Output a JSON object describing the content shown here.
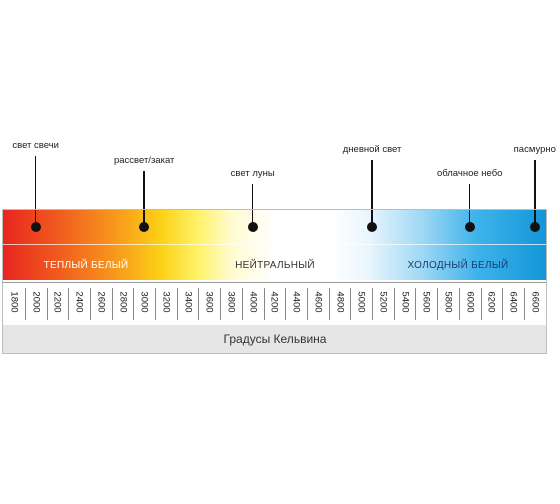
{
  "markers": [
    {
      "label": "свет свечи",
      "k": 2000
    },
    {
      "label": "рассвет/закат",
      "k": 3000
    },
    {
      "label": "свет луны",
      "k": 4000
    },
    {
      "label": "дневной свет",
      "k": 5100
    },
    {
      "label": "облачное небо",
      "k": 6000
    },
    {
      "label": "пасмурно",
      "k": 6600
    }
  ],
  "zones": [
    {
      "label": "ТЕПЛЫЙ БЕЛЫЙ",
      "color": "#ffffff"
    },
    {
      "label": "НЕЙТРАЛЬНЫЙ",
      "color": "#333333"
    },
    {
      "label": "ХОЛОДНЫЙ БЕЛЫЙ",
      "color": "#1a3c6e"
    }
  ],
  "scale": [
    1800,
    2000,
    2200,
    2400,
    2600,
    2800,
    3000,
    3200,
    3400,
    3600,
    3800,
    4000,
    4200,
    4400,
    4600,
    4800,
    5000,
    5200,
    5400,
    5600,
    5800,
    6000,
    6200,
    6400,
    6600
  ],
  "footer": "Градусы Кельвина"
}
